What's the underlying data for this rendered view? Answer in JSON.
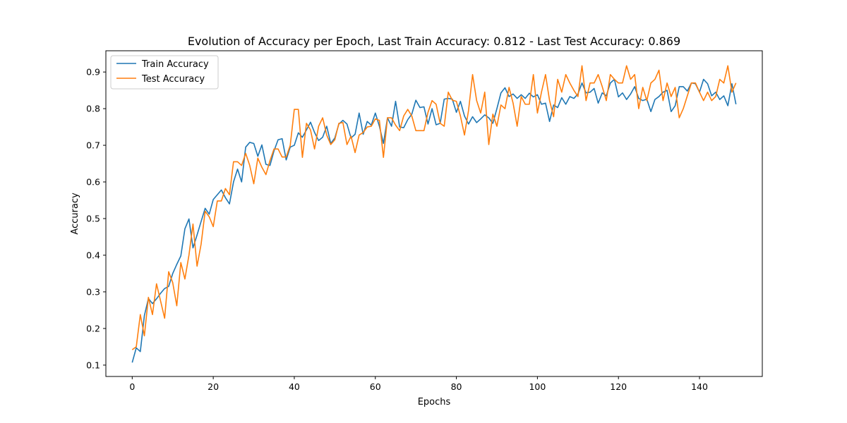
{
  "chart_data": {
    "type": "line",
    "title": "Evolution of Accuracy per Epoch,  Last Train Accuracy: 0.812 - Last Test Accuracy: 0.869",
    "xlabel": "Epochs",
    "ylabel": "Accuracy",
    "xlim": [
      -6.5,
      155.5
    ],
    "ylim": [
      0.069,
      0.958
    ],
    "xticks": [
      0,
      20,
      40,
      60,
      80,
      100,
      120,
      140
    ],
    "yticks": [
      0.1,
      0.2,
      0.3,
      0.4,
      0.5,
      0.6,
      0.7,
      0.8,
      0.9
    ],
    "ytick_labels": [
      "0.1",
      "0.2",
      "0.3",
      "0.4",
      "0.5",
      "0.6",
      "0.7",
      "0.8",
      "0.9"
    ],
    "legend_position": "upper-left",
    "grid": false,
    "series": [
      {
        "name": "Train Accuracy",
        "color": "#1f77b4",
        "values": [
          0.107,
          0.147,
          0.137,
          0.235,
          0.282,
          0.268,
          0.281,
          0.296,
          0.309,
          0.315,
          0.35,
          0.375,
          0.398,
          0.472,
          0.499,
          0.42,
          0.455,
          0.492,
          0.528,
          0.512,
          0.552,
          0.565,
          0.578,
          0.557,
          0.54,
          0.6,
          0.635,
          0.6,
          0.695,
          0.708,
          0.705,
          0.67,
          0.701,
          0.648,
          0.645,
          0.685,
          0.715,
          0.718,
          0.66,
          0.695,
          0.7,
          0.734,
          0.722,
          0.742,
          0.763,
          0.735,
          0.713,
          0.722,
          0.752,
          0.705,
          0.72,
          0.758,
          0.768,
          0.758,
          0.72,
          0.73,
          0.788,
          0.73,
          0.765,
          0.755,
          0.788,
          0.752,
          0.705,
          0.775,
          0.752,
          0.82,
          0.75,
          0.748,
          0.77,
          0.785,
          0.823,
          0.803,
          0.805,
          0.758,
          0.8,
          0.756,
          0.76,
          0.826,
          0.828,
          0.826,
          0.79,
          0.82,
          0.78,
          0.758,
          0.778,
          0.762,
          0.772,
          0.783,
          0.775,
          0.76,
          0.8,
          0.843,
          0.857,
          0.833,
          0.84,
          0.828,
          0.838,
          0.828,
          0.842,
          0.832,
          0.838,
          0.812,
          0.815,
          0.765,
          0.81,
          0.803,
          0.83,
          0.812,
          0.833,
          0.828,
          0.84,
          0.87,
          0.843,
          0.845,
          0.855,
          0.815,
          0.843,
          0.835,
          0.87,
          0.88,
          0.832,
          0.843,
          0.825,
          0.84,
          0.86,
          0.828,
          0.822,
          0.826,
          0.792,
          0.825,
          0.833,
          0.845,
          0.85,
          0.792,
          0.808,
          0.86,
          0.86,
          0.848,
          0.87,
          0.868,
          0.845,
          0.88,
          0.868,
          0.835,
          0.845,
          0.825,
          0.835,
          0.808,
          0.868,
          0.812
        ]
      },
      {
        "name": "Test Accuracy",
        "color": "#ff7f0e",
        "values": [
          0.142,
          0.15,
          0.238,
          0.18,
          0.285,
          0.238,
          0.322,
          0.275,
          0.228,
          0.355,
          0.325,
          0.262,
          0.38,
          0.335,
          0.4,
          0.485,
          0.37,
          0.43,
          0.52,
          0.505,
          0.478,
          0.548,
          0.548,
          0.582,
          0.565,
          0.655,
          0.655,
          0.645,
          0.678,
          0.645,
          0.595,
          0.665,
          0.64,
          0.62,
          0.658,
          0.69,
          0.69,
          0.668,
          0.668,
          0.7,
          0.798,
          0.798,
          0.667,
          0.76,
          0.742,
          0.69,
          0.752,
          0.775,
          0.728,
          0.702,
          0.715,
          0.76,
          0.762,
          0.702,
          0.725,
          0.68,
          0.728,
          0.735,
          0.75,
          0.752,
          0.772,
          0.768,
          0.667,
          0.775,
          0.775,
          0.755,
          0.74,
          0.78,
          0.798,
          0.78,
          0.74,
          0.74,
          0.74,
          0.79,
          0.822,
          0.812,
          0.76,
          0.752,
          0.845,
          0.823,
          0.82,
          0.78,
          0.728,
          0.795,
          0.893,
          0.822,
          0.788,
          0.845,
          0.702,
          0.785,
          0.752,
          0.81,
          0.8,
          0.858,
          0.815,
          0.752,
          0.833,
          0.812,
          0.812,
          0.893,
          0.788,
          0.845,
          0.893,
          0.822,
          0.778,
          0.88,
          0.845,
          0.893,
          0.87,
          0.85,
          0.833,
          0.917,
          0.822,
          0.87,
          0.87,
          0.893,
          0.86,
          0.822,
          0.893,
          0.88,
          0.87,
          0.87,
          0.917,
          0.88,
          0.893,
          0.8,
          0.858,
          0.822,
          0.87,
          0.88,
          0.905,
          0.822,
          0.87,
          0.833,
          0.858,
          0.775,
          0.8,
          0.835,
          0.87,
          0.87,
          0.845,
          0.822,
          0.845,
          0.822,
          0.833,
          0.88,
          0.87,
          0.917,
          0.845,
          0.87
        ]
      }
    ]
  }
}
